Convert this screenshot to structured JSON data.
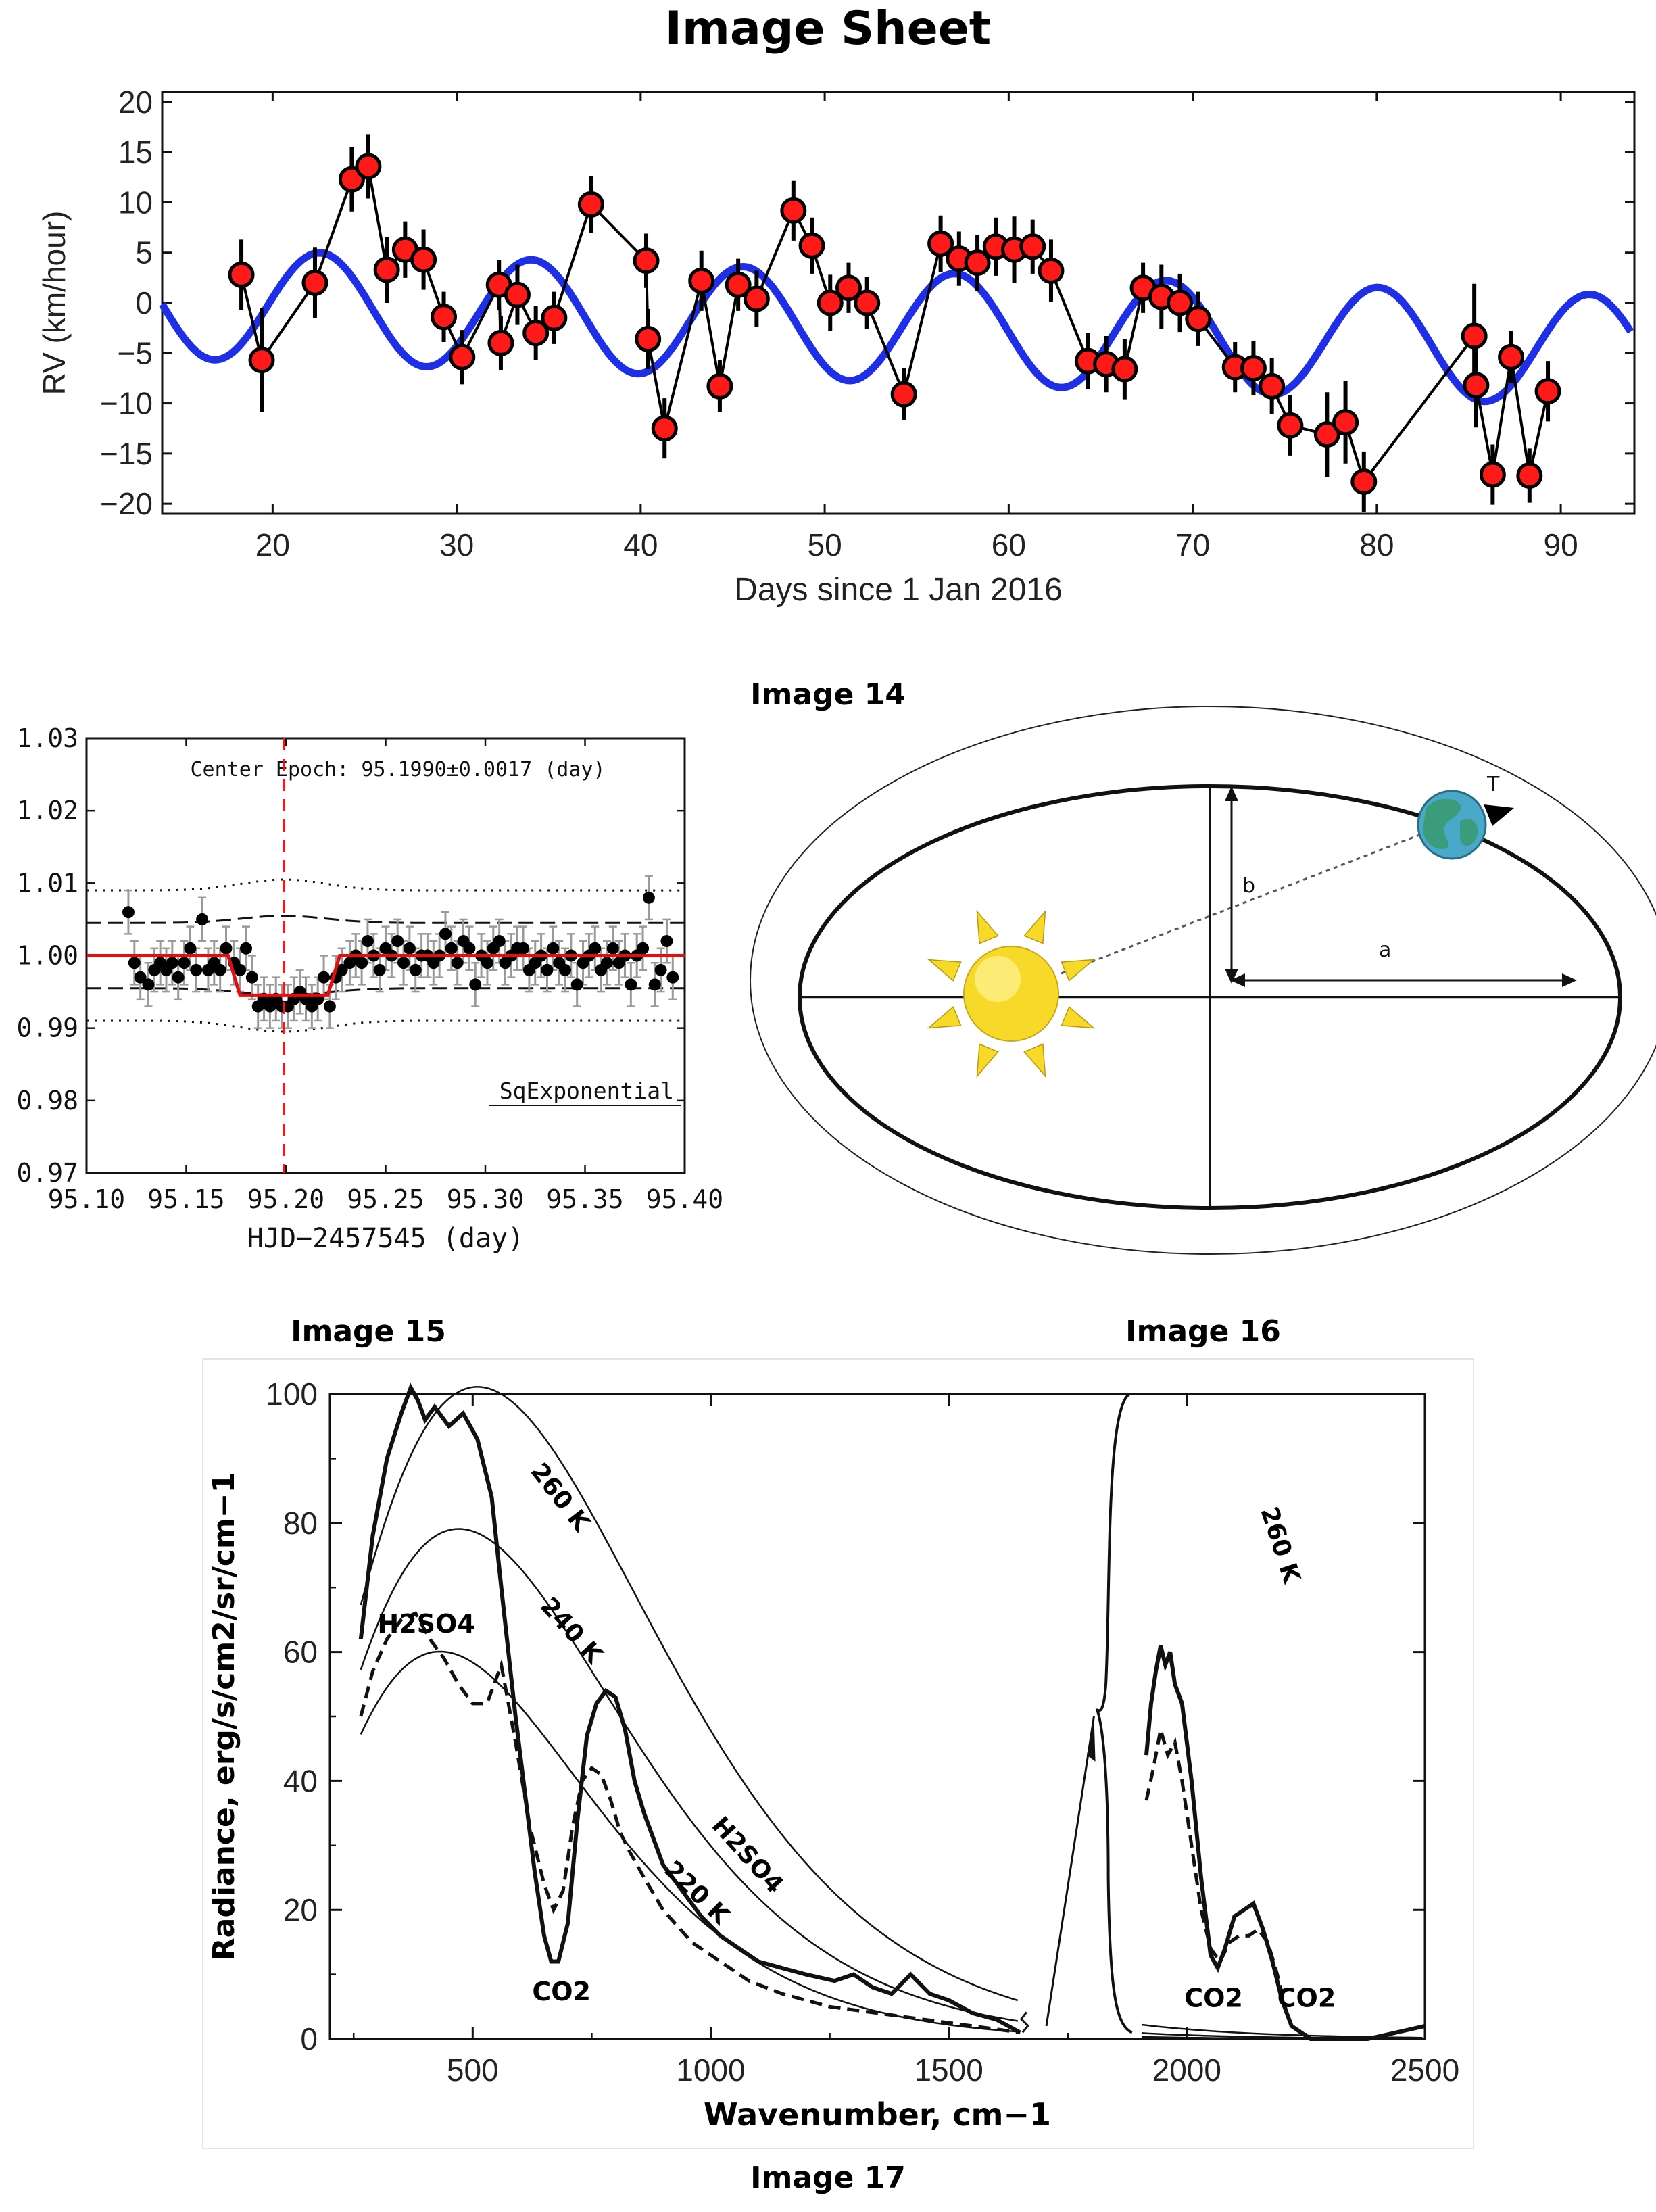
{
  "sheet_title": "Image Sheet",
  "captions": {
    "c14": "Image 14",
    "c15": "Image 15",
    "c16": "Image 16",
    "c17": "Image 17"
  },
  "colors": {
    "model_line": "#1f2fe6",
    "rv_points": "#ff1a1a",
    "transit_model": "#e01010",
    "epoch_line": "#e02020",
    "sun": "#f7d92a",
    "planet": "#3a9c7a"
  },
  "chart_data": [
    {
      "type": "line",
      "title": "",
      "xlabel": "Days since 1 Jan 2016",
      "ylabel": "RV (km/hour)",
      "xlim": [
        14,
        94
      ],
      "ylim": [
        -21,
        21
      ],
      "xticks": [
        20,
        30,
        40,
        50,
        60,
        70,
        80,
        90
      ],
      "yticks": [
        20,
        15,
        10,
        5,
        0,
        -5,
        -10,
        -15,
        -20
      ],
      "ytick_labels": [
        "20",
        "15",
        "10",
        "5",
        "0",
        "−5",
        "−10",
        "−15",
        "−20"
      ],
      "series": [
        {
          "kind": "points_with_errorbars",
          "x": [
            18.3,
            19.4,
            22.3,
            24.3,
            25.2,
            26.2,
            27.2,
            28.2,
            29.3,
            30.3,
            32.3,
            32.4,
            33.3,
            34.3,
            35.3,
            37.3,
            40.3,
            40.4,
            41.3,
            43.3,
            44.3,
            45.3,
            46.3,
            48.3,
            49.3,
            50.3,
            51.3,
            52.3,
            54.3,
            56.3,
            57.3,
            58.3,
            59.3,
            60.3,
            61.3,
            62.3,
            64.3,
            65.3,
            66.3,
            67.3,
            68.3,
            69.3,
            70.3,
            72.3,
            73.3,
            74.3,
            75.3,
            77.3,
            78.3,
            79.3,
            85.3,
            85.4,
            86.3,
            87.3,
            88.3,
            89.3
          ],
          "y": [
            2.8,
            -5.7,
            2.0,
            12.3,
            13.6,
            3.3,
            5.3,
            4.3,
            -1.4,
            -5.4,
            1.8,
            -4.0,
            0.8,
            -3.0,
            -1.5,
            9.8,
            4.2,
            -3.6,
            -12.5,
            2.2,
            -8.3,
            1.8,
            0.4,
            9.2,
            5.7,
            0.0,
            1.5,
            0.0,
            -9.1,
            5.9,
            4.4,
            4.0,
            5.6,
            5.3,
            5.6,
            3.2,
            -5.8,
            -6.1,
            -6.6,
            1.5,
            0.6,
            0.0,
            -1.6,
            -6.4,
            -6.5,
            -8.3,
            -12.2,
            -13.1,
            -11.9,
            -17.8,
            -3.3,
            -8.2,
            -17.1,
            -5.4,
            -17.2,
            -8.8
          ],
          "err": [
            3.5,
            5.2,
            3.5,
            3.2,
            3.2,
            3.3,
            2.8,
            3.0,
            2.5,
            2.7,
            2.5,
            2.7,
            3.0,
            2.7,
            2.6,
            2.8,
            2.7,
            3.0,
            3.0,
            3.0,
            2.6,
            2.6,
            2.8,
            3.0,
            2.8,
            2.8,
            2.5,
            2.6,
            2.6,
            2.8,
            2.7,
            2.8,
            2.9,
            3.3,
            2.7,
            3.1,
            2.8,
            2.8,
            3.0,
            2.5,
            3.2,
            2.9,
            2.7,
            2.5,
            2.7,
            2.8,
            3.0,
            4.2,
            4.1,
            3.0,
            5.2,
            4.2,
            3.0,
            2.6,
            2.7,
            3.0
          ]
        },
        {
          "kind": "sine_model",
          "mean": 0,
          "amplitude": 5.5,
          "period": 11.5,
          "phase": 1.8,
          "trend": -0.06
        }
      ]
    },
    {
      "type": "scatter",
      "title": "",
      "xlabel": "HJD−2457545 (day)",
      "ylabel": "",
      "xlim": [
        95.1,
        95.4
      ],
      "ylim": [
        0.97,
        1.03
      ],
      "xticks": [
        "95.10",
        "95.15",
        "95.20",
        "95.25",
        "95.30",
        "95.35",
        "95.40"
      ],
      "yticks": [
        "1.03",
        "1.02",
        "1.01",
        "1.00",
        "0.99",
        "0.98",
        "0.97"
      ],
      "annotation": "Center Epoch: 95.1990±0.0017 (day)",
      "model_label": "SqExponential",
      "center_epoch": 95.199,
      "transit": {
        "start": 95.175,
        "end": 95.225,
        "depth": 0.9945,
        "baseline": 1.0
      },
      "points": {
        "x": [
          95.121,
          95.124,
          95.127,
          95.131,
          95.134,
          95.137,
          95.14,
          95.143,
          95.146,
          95.149,
          95.152,
          95.155,
          95.158,
          95.161,
          95.164,
          95.167,
          95.17,
          95.174,
          95.177,
          95.18,
          95.183,
          95.186,
          95.189,
          95.192,
          95.195,
          95.198,
          95.201,
          95.204,
          95.207,
          95.21,
          95.213,
          95.216,
          95.219,
          95.222,
          95.225,
          95.228,
          95.232,
          95.235,
          95.238,
          95.241,
          95.244,
          95.247,
          95.25,
          95.253,
          95.256,
          95.259,
          95.262,
          95.265,
          95.268,
          95.271,
          95.274,
          95.277,
          95.28,
          95.283,
          95.286,
          95.289,
          95.292,
          95.295,
          95.298,
          95.301,
          95.304,
          95.307,
          95.31,
          95.313,
          95.316,
          95.319,
          95.322,
          95.325,
          95.328,
          95.331,
          95.334,
          95.337,
          95.34,
          95.343,
          95.346,
          95.349,
          95.352,
          95.355,
          95.358,
          95.361,
          95.364,
          95.367,
          95.37,
          95.373,
          95.376,
          95.379,
          95.382,
          95.385,
          95.388,
          95.391,
          95.394
        ],
        "y": [
          1.006,
          0.999,
          0.997,
          0.996,
          0.998,
          0.999,
          0.998,
          0.999,
          0.997,
          0.999,
          1.001,
          0.998,
          1.005,
          0.998,
          0.999,
          0.998,
          1.001,
          0.999,
          0.998,
          1.001,
          0.997,
          0.993,
          0.994,
          0.993,
          0.994,
          0.993,
          0.993,
          0.994,
          0.995,
          0.994,
          0.993,
          0.994,
          0.997,
          0.993,
          0.997,
          0.998,
          0.999,
          1.0,
          0.999,
          1.002,
          1.0,
          0.998,
          1.001,
          1.0,
          1.002,
          0.999,
          1.001,
          0.998,
          1.0,
          1.0,
          0.999,
          1.0,
          1.003,
          1.001,
          0.999,
          1.002,
          1.001,
          0.996,
          1.0,
          0.999,
          1.001,
          1.002,
          0.999,
          1.0,
          1.001,
          1.001,
          0.998,
          0.999,
          1.0,
          0.998,
          1.001,
          0.999,
          0.998,
          1.0,
          0.996,
          0.999,
          1.0,
          1.001,
          0.998,
          0.999,
          1.001,
          0.999,
          1.0,
          0.996,
          1.0,
          1.001,
          1.008,
          0.996,
          0.998,
          1.002,
          0.997
        ],
        "err": 0.003
      },
      "bands": {
        "dashed": [
          1.0045,
          0.9955
        ],
        "dotted": [
          1.009,
          0.991
        ]
      }
    },
    {
      "type": "diagram",
      "labels": {
        "semi_minor": "b",
        "semi_major": "a",
        "planet": "T"
      }
    },
    {
      "type": "line",
      "title": "",
      "xlabel": "Wavenumber, cm−1",
      "ylabel": "Radiance, erg/s/cm2/sr/cm−1",
      "xlim": [
        200,
        2500
      ],
      "ylim": [
        0,
        100
      ],
      "xticks": [
        500,
        1000,
        1500,
        2000,
        2500
      ],
      "yticks": [
        0,
        20,
        40,
        60,
        80,
        100
      ],
      "series": [
        {
          "name": "260 K",
          "kind": "blackbody",
          "T": 260
        },
        {
          "name": "240 K",
          "kind": "blackbody",
          "T": 240
        },
        {
          "name": "220 K",
          "kind": "blackbody",
          "T": 220
        },
        {
          "kind": "observed_solid",
          "x": [
            265,
            290,
            320,
            350,
            370,
            385,
            400,
            420,
            450,
            480,
            510,
            540,
            560,
            575,
            590,
            610,
            630,
            650,
            665,
            680,
            700,
            720,
            740,
            760,
            780,
            800,
            820,
            840,
            860,
            880,
            900,
            940,
            980,
            1020,
            1060,
            1100,
            1150,
            1200,
            1260,
            1300,
            1340,
            1380,
            1420,
            1460,
            1500,
            1550,
            1600,
            1650
          ],
          "y": [
            62,
            78,
            90,
            97,
            101,
            99,
            96,
            98,
            95,
            97,
            93,
            84,
            70,
            60,
            50,
            38,
            26,
            16,
            12,
            12,
            18,
            34,
            47,
            52,
            54,
            53,
            48,
            40,
            35,
            31,
            27,
            23,
            19,
            16,
            14,
            12,
            11,
            10,
            9,
            10,
            8,
            7,
            10,
            7,
            6,
            4,
            3,
            1
          ]
        },
        {
          "kind": "observed_dashed",
          "x": [
            265,
            290,
            320,
            350,
            380,
            410,
            440,
            470,
            500,
            530,
            560,
            590,
            620,
            650,
            670,
            690,
            710,
            730,
            750,
            770,
            790,
            810,
            830,
            860,
            900,
            960,
            1020,
            1080,
            1150,
            1250,
            1350,
            1450,
            1550,
            1650
          ],
          "y": [
            50,
            57,
            62,
            65,
            66,
            62,
            59,
            55,
            52,
            52,
            58,
            46,
            33,
            24,
            20,
            23,
            33,
            40,
            42,
            41,
            37,
            32,
            29,
            25,
            20,
            15,
            12,
            9,
            7,
            5,
            4,
            3,
            2,
            1
          ]
        },
        {
          "kind": "observed_solid",
          "x": [
            1915,
            1925,
            1935,
            1945,
            1955,
            1965,
            1975,
            1990,
            2010,
            2030,
            2050,
            2065,
            2080,
            2100,
            2120,
            2140,
            2160,
            2180,
            2200,
            2220,
            2240,
            2260,
            2300,
            2380,
            2440,
            2500
          ],
          "y": [
            44,
            52,
            57,
            61,
            58,
            60,
            55,
            52,
            40,
            25,
            13,
            11,
            14,
            19,
            20,
            21,
            17,
            12,
            6,
            2,
            1,
            0,
            0,
            0,
            1,
            2
          ]
        },
        {
          "kind": "observed_dashed",
          "x": [
            1915,
            1930,
            1945,
            1960,
            1975,
            1990,
            2010,
            2030,
            2050,
            2070,
            2090,
            2110,
            2130,
            2150,
            2170,
            2190,
            2210
          ],
          "y": [
            37,
            42,
            48,
            44,
            46,
            40,
            30,
            20,
            14,
            12,
            15,
            16,
            16,
            17,
            15,
            10,
            4
          ]
        }
      ],
      "annotations": [
        "260 K",
        "240 K",
        "220 K",
        "H2SO4",
        "H2SO4",
        "CO2",
        "CO2",
        "CO2",
        "260 K"
      ]
    }
  ]
}
